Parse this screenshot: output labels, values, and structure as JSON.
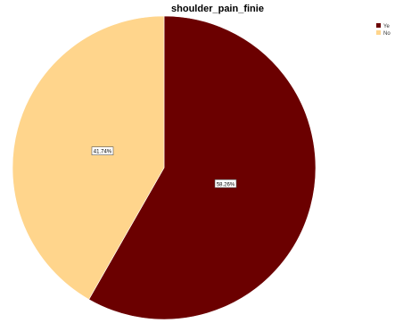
{
  "chart_data": {
    "type": "pie",
    "title": "shoulder_pain_finie",
    "categories": [
      "Ye",
      "No"
    ],
    "values": [
      58.26,
      41.74
    ],
    "value_labels": [
      "58.26%",
      "41.74%"
    ],
    "colors": [
      "#6b0000",
      "#ffd58c"
    ],
    "legend": {
      "position": "top-right",
      "entries": [
        "Ye",
        "No"
      ]
    }
  }
}
